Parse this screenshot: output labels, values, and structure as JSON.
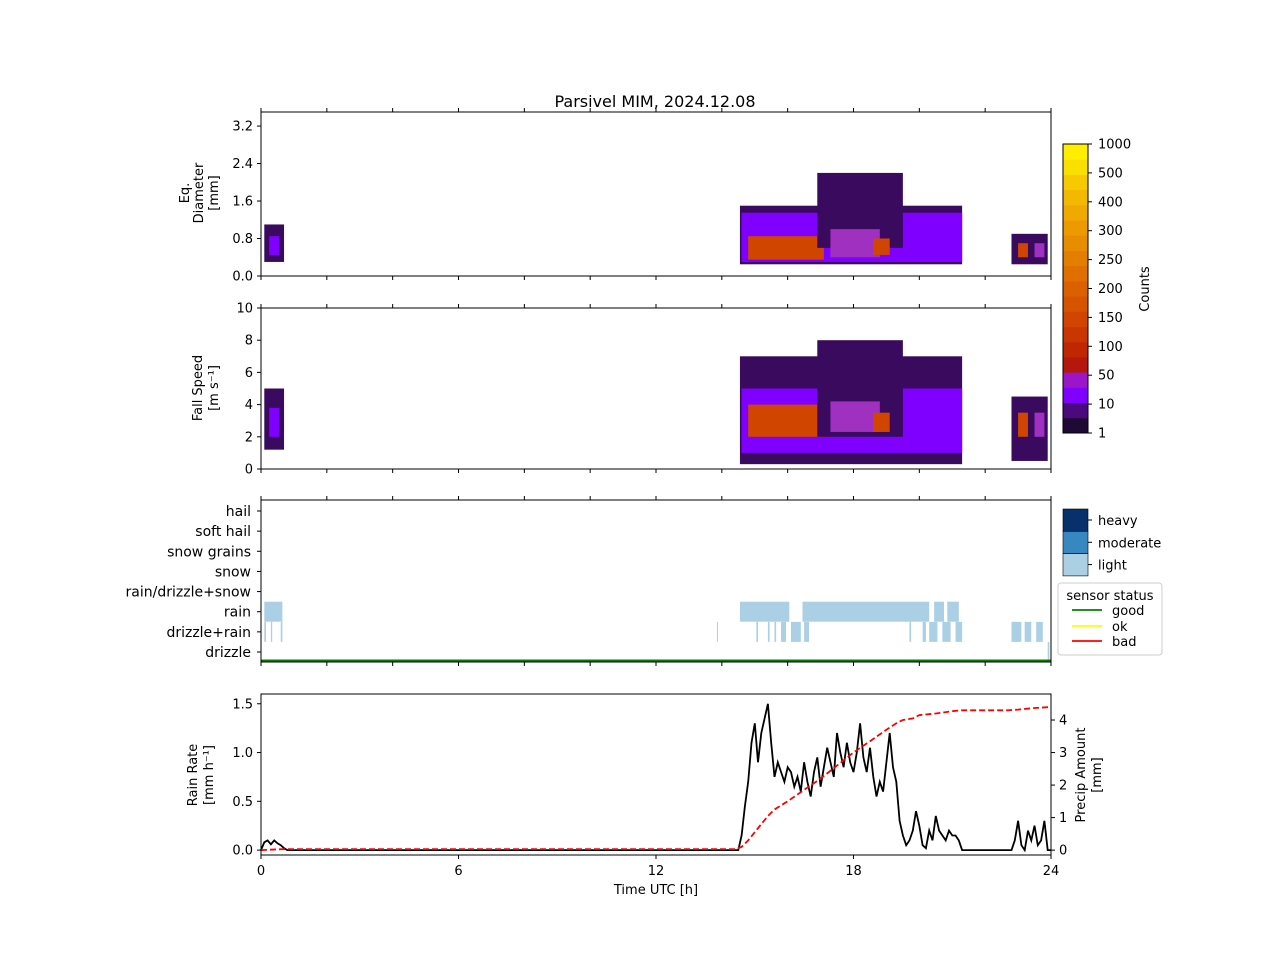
{
  "chart_data": [
    {
      "type": "heatmap",
      "title": "Parsivel MIM, 2024.12.08",
      "ylabel_lines": [
        "Eq.",
        "Diameter",
        "[mm]"
      ],
      "yticks": [
        "0.0",
        "0.8",
        "1.6",
        "2.4",
        "3.2"
      ],
      "ylim": [
        0,
        3.5
      ],
      "xlim": [
        0,
        24
      ],
      "blocks": [
        {
          "x0": 0.1,
          "x1": 0.7,
          "y0": 0.3,
          "y1": 1.1,
          "level": "low"
        },
        {
          "x0": 0.25,
          "x1": 0.55,
          "y0": 0.45,
          "y1": 0.85,
          "level": "mid"
        },
        {
          "x0": 14.55,
          "x1": 21.3,
          "y0": 0.25,
          "y1": 1.5,
          "level": "low"
        },
        {
          "x0": 14.6,
          "x1": 21.3,
          "y0": 0.3,
          "y1": 1.35,
          "level": "mid"
        },
        {
          "x0": 14.8,
          "x1": 17.1,
          "y0": 0.35,
          "y1": 0.85,
          "level": "high"
        },
        {
          "x0": 16.9,
          "x1": 19.5,
          "y0": 0.6,
          "y1": 2.2,
          "level": "low"
        },
        {
          "x0": 17.3,
          "x1": 18.8,
          "y0": 0.4,
          "y1": 1.0,
          "level": "warm"
        },
        {
          "x0": 18.6,
          "x1": 19.1,
          "y0": 0.45,
          "y1": 0.8,
          "level": "high"
        },
        {
          "x0": 22.8,
          "x1": 23.9,
          "y0": 0.25,
          "y1": 0.9,
          "level": "low"
        },
        {
          "x0": 23.0,
          "x1": 23.3,
          "y0": 0.4,
          "y1": 0.7,
          "level": "high"
        },
        {
          "x0": 23.5,
          "x1": 23.8,
          "y0": 0.4,
          "y1": 0.7,
          "level": "warm"
        }
      ]
    },
    {
      "type": "heatmap",
      "ylabel_lines": [
        "Fall Speed",
        "[m s⁻¹]"
      ],
      "yticks": [
        "0",
        "2",
        "4",
        "6",
        "8",
        "10"
      ],
      "ylim": [
        0,
        10
      ],
      "xlim": [
        0,
        24
      ],
      "blocks": [
        {
          "x0": 0.1,
          "x1": 0.7,
          "y0": 1.2,
          "y1": 5.0,
          "level": "low"
        },
        {
          "x0": 0.25,
          "x1": 0.55,
          "y0": 2.0,
          "y1": 3.8,
          "level": "mid"
        },
        {
          "x0": 14.55,
          "x1": 21.3,
          "y0": 0.3,
          "y1": 7.0,
          "level": "low"
        },
        {
          "x0": 14.6,
          "x1": 21.3,
          "y0": 1.0,
          "y1": 5.0,
          "level": "mid"
        },
        {
          "x0": 14.8,
          "x1": 17.1,
          "y0": 2.0,
          "y1": 4.0,
          "level": "high"
        },
        {
          "x0": 16.9,
          "x1": 19.5,
          "y0": 2.0,
          "y1": 8.0,
          "level": "low"
        },
        {
          "x0": 17.3,
          "x1": 18.8,
          "y0": 2.3,
          "y1": 4.2,
          "level": "warm"
        },
        {
          "x0": 18.6,
          "x1": 19.1,
          "y0": 2.3,
          "y1": 3.5,
          "level": "high"
        },
        {
          "x0": 22.8,
          "x1": 23.9,
          "y0": 0.5,
          "y1": 4.5,
          "level": "low"
        },
        {
          "x0": 23.0,
          "x1": 23.3,
          "y0": 2.0,
          "y1": 3.5,
          "level": "high"
        },
        {
          "x0": 23.5,
          "x1": 23.8,
          "y0": 2.0,
          "y1": 3.5,
          "level": "warm"
        }
      ]
    },
    {
      "type": "bar",
      "categories": [
        "hail",
        "soft hail",
        "snow grains",
        "snow",
        "rain/drizzle+snow",
        "rain",
        "drizzle+rain",
        "drizzle"
      ],
      "xlim": [
        0,
        24
      ],
      "segments": [
        {
          "category": "rain",
          "x0": 0.1,
          "x1": 0.65,
          "intensity": "light"
        },
        {
          "category": "rain",
          "x0": 14.55,
          "x1": 16.05,
          "intensity": "light"
        },
        {
          "category": "rain",
          "x0": 16.45,
          "x1": 20.3,
          "intensity": "light"
        },
        {
          "category": "rain",
          "x0": 20.45,
          "x1": 20.75,
          "intensity": "light"
        },
        {
          "category": "rain",
          "x0": 20.85,
          "x1": 21.2,
          "intensity": "light"
        },
        {
          "category": "drizzle+rain",
          "x0": 0.1,
          "x1": 0.15,
          "intensity": "light"
        },
        {
          "category": "drizzle+rain",
          "x0": 0.3,
          "x1": 0.34,
          "intensity": "light"
        },
        {
          "category": "drizzle+rain",
          "x0": 0.6,
          "x1": 0.65,
          "intensity": "light"
        },
        {
          "category": "drizzle+rain",
          "x0": 13.85,
          "x1": 13.88,
          "intensity": "light"
        },
        {
          "category": "drizzle+rain",
          "x0": 15.05,
          "x1": 15.1,
          "intensity": "light"
        },
        {
          "category": "drizzle+rain",
          "x0": 15.4,
          "x1": 15.45,
          "intensity": "light"
        },
        {
          "category": "drizzle+rain",
          "x0": 15.6,
          "x1": 15.65,
          "intensity": "light"
        },
        {
          "category": "drizzle+rain",
          "x0": 15.8,
          "x1": 15.95,
          "intensity": "light"
        },
        {
          "category": "drizzle+rain",
          "x0": 16.1,
          "x1": 16.4,
          "intensity": "light"
        },
        {
          "category": "drizzle+rain",
          "x0": 16.5,
          "x1": 16.65,
          "intensity": "light"
        },
        {
          "category": "drizzle+rain",
          "x0": 19.7,
          "x1": 19.75,
          "intensity": "light"
        },
        {
          "category": "drizzle+rain",
          "x0": 20.1,
          "x1": 20.2,
          "intensity": "light"
        },
        {
          "category": "drizzle+rain",
          "x0": 20.3,
          "x1": 20.55,
          "intensity": "light"
        },
        {
          "category": "drizzle+rain",
          "x0": 20.7,
          "x1": 20.95,
          "intensity": "light"
        },
        {
          "category": "drizzle+rain",
          "x0": 21.1,
          "x1": 21.3,
          "intensity": "light"
        },
        {
          "category": "drizzle+rain",
          "x0": 22.8,
          "x1": 23.1,
          "intensity": "light"
        },
        {
          "category": "drizzle+rain",
          "x0": 23.2,
          "x1": 23.4,
          "intensity": "light"
        },
        {
          "category": "drizzle+rain",
          "x0": 23.55,
          "x1": 23.75,
          "intensity": "light"
        },
        {
          "category": "drizzle",
          "x0": 23.9,
          "x1": 23.95,
          "intensity": "light"
        }
      ],
      "intensity_legend": [
        "heavy",
        "moderate",
        "light"
      ],
      "sensor_status": {
        "title": "sensor status",
        "items": [
          {
            "label": "good",
            "color": "#008000"
          },
          {
            "label": "ok",
            "color": "#ffff00"
          },
          {
            "label": "bad",
            "color": "#ff0000"
          }
        ],
        "value": "good"
      }
    },
    {
      "type": "line",
      "xlabel": "Time UTC [h]",
      "xticks": [
        "0",
        "6",
        "12",
        "18",
        "24"
      ],
      "xlim": [
        0,
        24
      ],
      "ylabel_lines": [
        "Rain Rate",
        "[mm h⁻¹]"
      ],
      "yticks": [
        "0.0",
        "0.5",
        "1.0",
        "1.5"
      ],
      "ylim": [
        -0.05,
        1.6
      ],
      "y2label_lines": [
        "Precip Amount",
        "[mm]"
      ],
      "y2ticks": [
        "0",
        "1",
        "2",
        "3",
        "4"
      ],
      "y2lim": [
        -0.15,
        4.8
      ],
      "series": [
        {
          "axis": "left",
          "color": "#000000",
          "style": "solid",
          "x": [
            0,
            0.1,
            0.2,
            0.3,
            0.4,
            0.5,
            0.6,
            0.7,
            0.8,
            14,
            14.3,
            14.5,
            14.6,
            14.7,
            14.8,
            14.9,
            15,
            15.1,
            15.2,
            15.3,
            15.4,
            15.5,
            15.6,
            15.7,
            15.8,
            15.9,
            16,
            16.1,
            16.2,
            16.3,
            16.4,
            16.5,
            16.6,
            16.7,
            16.8,
            16.9,
            17,
            17.1,
            17.2,
            17.3,
            17.4,
            17.5,
            17.6,
            17.7,
            17.8,
            17.9,
            18,
            18.1,
            18.2,
            18.3,
            18.4,
            18.5,
            18.6,
            18.7,
            18.8,
            18.9,
            19,
            19.1,
            19.2,
            19.3,
            19.4,
            19.5,
            19.6,
            19.7,
            19.8,
            19.9,
            20,
            20.1,
            20.2,
            20.3,
            20.4,
            20.5,
            20.6,
            20.7,
            20.8,
            20.9,
            21,
            21.1,
            21.2,
            21.3,
            21.5,
            22,
            22.5,
            22.8,
            22.9,
            23,
            23.1,
            23.2,
            23.3,
            23.4,
            23.5,
            23.6,
            23.7,
            23.8,
            23.9,
            24
          ],
          "y": [
            0,
            0.08,
            0.1,
            0.06,
            0.1,
            0.07,
            0.05,
            0.02,
            0,
            0,
            0,
            0,
            0.15,
            0.45,
            0.7,
            1.1,
            1.3,
            0.9,
            1.2,
            1.35,
            1.5,
            1.1,
            0.75,
            0.9,
            0.8,
            0.7,
            0.85,
            0.8,
            0.65,
            0.75,
            0.6,
            0.9,
            0.7,
            0.55,
            0.8,
            0.95,
            0.65,
            0.85,
            1.05,
            0.9,
            0.75,
            1.2,
            1.0,
            0.85,
            1.1,
            0.9,
            0.8,
            1.0,
            1.3,
            0.95,
            0.8,
            1.05,
            0.75,
            0.55,
            0.7,
            0.6,
            0.9,
            1.2,
            0.85,
            0.7,
            0.3,
            0.15,
            0.05,
            0.1,
            0.2,
            0.4,
            0.25,
            0.05,
            0.02,
            0.2,
            0.1,
            0.35,
            0.2,
            0.15,
            0.1,
            0.2,
            0.15,
            0.15,
            0.1,
            0.0,
            0.0,
            0.0,
            0.0,
            0.0,
            0.1,
            0.3,
            0.05,
            0.0,
            0.2,
            0.1,
            0.25,
            0.05,
            0.1,
            0.3,
            0.0,
            0.0
          ]
        },
        {
          "axis": "right",
          "color": "#ff0000",
          "style": "dashed",
          "x": [
            0,
            0.7,
            14.4,
            14.6,
            14.8,
            15.0,
            15.2,
            15.4,
            15.6,
            16.0,
            16.5,
            17.0,
            17.5,
            18.0,
            18.5,
            19.0,
            19.3,
            19.5,
            19.8,
            20.0,
            20.5,
            21.0,
            21.3,
            22.0,
            22.7,
            23.0,
            23.5,
            24
          ],
          "y": [
            0,
            0.03,
            0.03,
            0.1,
            0.3,
            0.55,
            0.8,
            1.05,
            1.25,
            1.5,
            1.85,
            2.2,
            2.6,
            3.0,
            3.35,
            3.7,
            3.9,
            4.0,
            4.05,
            4.15,
            4.2,
            4.27,
            4.3,
            4.3,
            4.3,
            4.32,
            4.37,
            4.4
          ]
        }
      ]
    }
  ],
  "colorbar": {
    "label": "Counts",
    "ticks": [
      "1",
      "10",
      "50",
      "100",
      "150",
      "200",
      "250",
      "300",
      "400",
      "500",
      "1000"
    ],
    "colors": [
      "#1f0a35",
      "#4a0a7e",
      "#8000ff",
      "#9a16c8",
      "#b4180c",
      "#c02600",
      "#c93600",
      "#d14500",
      "#d65300",
      "#db6100",
      "#e06f00",
      "#e47e00",
      "#e88c00",
      "#ec9a00",
      "#efa900",
      "#f3b800",
      "#f6c900",
      "#fae000",
      "#ffee00"
    ]
  },
  "heat_colors": {
    "low": "#3a0a5e",
    "mid": "#8000ff",
    "high": "#d04600",
    "warm": "#a030c0"
  },
  "intensity_colors": {
    "heavy": "#08306b",
    "moderate": "#3787c0",
    "light": "#abd0e6"
  }
}
